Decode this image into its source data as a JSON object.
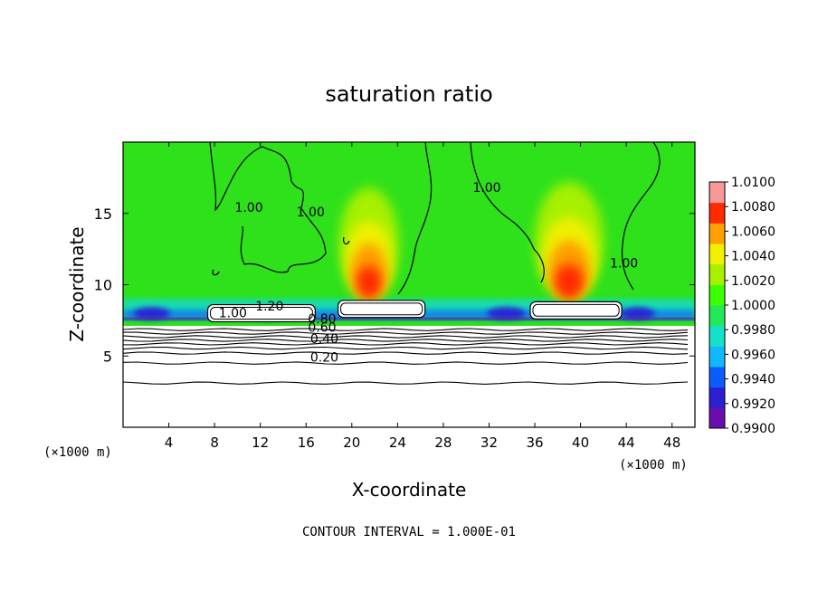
{
  "chart_data": {
    "type": "heatmap",
    "title": "saturation ratio",
    "xlabel": "X-coordinate",
    "ylabel": "Z-coordinate",
    "x_unit_left": "(×1000 m)",
    "x_unit_right": "(×1000 m)",
    "xlim": [
      0,
      50
    ],
    "ylim": [
      0,
      20
    ],
    "xticks": [
      4,
      8,
      12,
      16,
      20,
      24,
      28,
      32,
      36,
      40,
      44,
      48
    ],
    "yticks": [
      5,
      10,
      15
    ],
    "footer": "CONTOUR INTERVAL = 1.000E-01",
    "colorbar": {
      "labels": [
        "1.0100",
        "1.0080",
        "1.0060",
        "1.0040",
        "1.0020",
        "1.0000",
        "0.9980",
        "0.9960",
        "0.9940",
        "0.9920",
        "0.9900"
      ],
      "min": 0.99,
      "max": 1.01,
      "colors": [
        "#6a0dad",
        "#2b1fd0",
        "#0b5cff",
        "#12b8ff",
        "#17e0c8",
        "#22e85a",
        "#3cff00",
        "#a6f000",
        "#f0f000",
        "#ff9f00",
        "#ff2a00",
        "#f89898"
      ]
    },
    "contour_labels": [
      {
        "text": "1.00",
        "x": 11.0,
        "z": 15.1
      },
      {
        "text": "1.00",
        "x": 16.4,
        "z": 14.8
      },
      {
        "text": "1.00",
        "x": 31.8,
        "z": 16.5
      },
      {
        "text": "1.00",
        "x": 43.8,
        "z": 11.2
      },
      {
        "text": "1.00",
        "x": 9.6,
        "z": 7.7
      },
      {
        "text": "1.20",
        "x": 12.8,
        "z": 8.2
      },
      {
        "text": "0.80",
        "x": 17.4,
        "z": 7.3
      },
      {
        "text": "0.60",
        "x": 17.4,
        "z": 6.7
      },
      {
        "text": "0.40",
        "x": 17.6,
        "z": 5.9
      },
      {
        "text": "0.20",
        "x": 17.6,
        "z": 4.6
      }
    ],
    "level_curves": [
      {
        "z": 6.85
      },
      {
        "z": 6.6
      },
      {
        "z": 6.35
      },
      {
        "z": 6.1
      },
      {
        "z": 5.85
      },
      {
        "z": 5.55
      },
      {
        "z": 5.2
      },
      {
        "z": 4.5
      },
      {
        "z": 3.1
      }
    ],
    "cloud_blocks": [
      {
        "x0": 7.4,
        "x1": 16.8,
        "z0": 7.4,
        "z1": 8.6
      },
      {
        "x0": 18.8,
        "x1": 26.4,
        "z0": 7.7,
        "z1": 8.9
      },
      {
        "x0": 35.6,
        "x1": 43.6,
        "z0": 7.6,
        "z1": 8.8
      }
    ],
    "plumes": [
      {
        "x": 21.5,
        "z_base": 9.0,
        "height": 7.8,
        "width": 2.6
      },
      {
        "x": 39.0,
        "z_base": 9.0,
        "height": 8.2,
        "width": 3.0
      }
    ],
    "dry_bands": [
      {
        "x": 2.5,
        "width": 3.2
      },
      {
        "x": 12.6,
        "width": 3.5
      },
      {
        "x": 33.5,
        "width": 3.4
      },
      {
        "x": 45.0,
        "width": 3.0
      }
    ]
  }
}
